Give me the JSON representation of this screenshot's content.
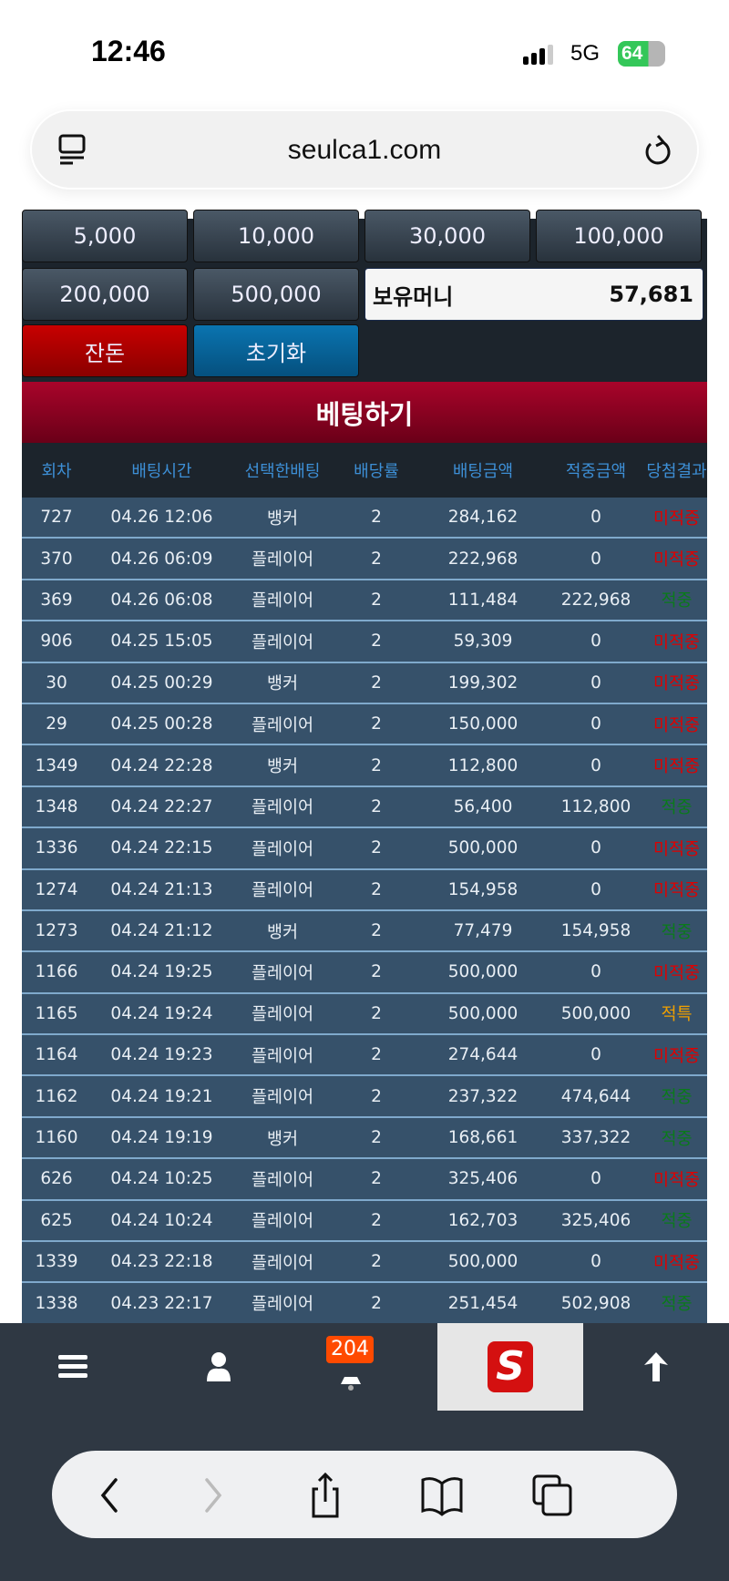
{
  "status_bar": {
    "time": "12:46",
    "network": "5G",
    "battery": "64"
  },
  "browser": {
    "url": "seulca1.com"
  },
  "chips": [
    "5,000",
    "10,000",
    "30,000",
    "100,000",
    "200,000",
    "500,000"
  ],
  "balance": {
    "label": "보유머니",
    "value": "57,681"
  },
  "actions": {
    "change": "잔돈",
    "reset": "초기화",
    "bet": "베팅하기"
  },
  "table": {
    "headers": [
      "회차",
      "배팅시간",
      "선택한배팅",
      "배당률",
      "배팅금액",
      "적중금액",
      "당첨결과"
    ],
    "rows": [
      [
        "727",
        "04.26 12:06",
        "뱅커",
        "2",
        "284,162",
        "0",
        "미적중"
      ],
      [
        "370",
        "04.26 06:09",
        "플레이어",
        "2",
        "222,968",
        "0",
        "미적중"
      ],
      [
        "369",
        "04.26 06:08",
        "플레이어",
        "2",
        "111,484",
        "222,968",
        "적중"
      ],
      [
        "906",
        "04.25 15:05",
        "플레이어",
        "2",
        "59,309",
        "0",
        "미적중"
      ],
      [
        "30",
        "04.25 00:29",
        "뱅커",
        "2",
        "199,302",
        "0",
        "미적중"
      ],
      [
        "29",
        "04.25 00:28",
        "플레이어",
        "2",
        "150,000",
        "0",
        "미적중"
      ],
      [
        "1349",
        "04.24 22:28",
        "뱅커",
        "2",
        "112,800",
        "0",
        "미적중"
      ],
      [
        "1348",
        "04.24 22:27",
        "플레이어",
        "2",
        "56,400",
        "112,800",
        "적중"
      ],
      [
        "1336",
        "04.24 22:15",
        "플레이어",
        "2",
        "500,000",
        "0",
        "미적중"
      ],
      [
        "1274",
        "04.24 21:13",
        "플레이어",
        "2",
        "154,958",
        "0",
        "미적중"
      ],
      [
        "1273",
        "04.24 21:12",
        "뱅커",
        "2",
        "77,479",
        "154,958",
        "적중"
      ],
      [
        "1166",
        "04.24 19:25",
        "플레이어",
        "2",
        "500,000",
        "0",
        "미적중"
      ],
      [
        "1165",
        "04.24 19:24",
        "플레이어",
        "2",
        "500,000",
        "500,000",
        "적특"
      ],
      [
        "1164",
        "04.24 19:23",
        "플레이어",
        "2",
        "274,644",
        "0",
        "미적중"
      ],
      [
        "1162",
        "04.24 19:21",
        "플레이어",
        "2",
        "237,322",
        "474,644",
        "적중"
      ],
      [
        "1160",
        "04.24 19:19",
        "뱅커",
        "2",
        "168,661",
        "337,322",
        "적중"
      ],
      [
        "626",
        "04.24 10:25",
        "플레이어",
        "2",
        "325,406",
        "0",
        "미적중"
      ],
      [
        "625",
        "04.24 10:24",
        "플레이어",
        "2",
        "162,703",
        "325,406",
        "적중"
      ],
      [
        "1339",
        "04.23 22:18",
        "플레이어",
        "2",
        "500,000",
        "0",
        "미적중"
      ],
      [
        "1338",
        "04.23 22:17",
        "플레이어",
        "2",
        "251,454",
        "502,908",
        "적중"
      ]
    ]
  },
  "result_colors": {
    "미적중": "#e00000",
    "적중": "#0a7a1a",
    "적특": "#f0a000"
  },
  "bottom_nav": {
    "notification_count": "204",
    "items": [
      "menu-icon",
      "user-icon",
      "bell-icon",
      "logo",
      "arrow-up-icon"
    ],
    "logo_text": "S"
  },
  "safari_toolbar": [
    "back-icon",
    "forward-icon",
    "share-icon",
    "bookmarks-icon",
    "tabs-icon"
  ]
}
